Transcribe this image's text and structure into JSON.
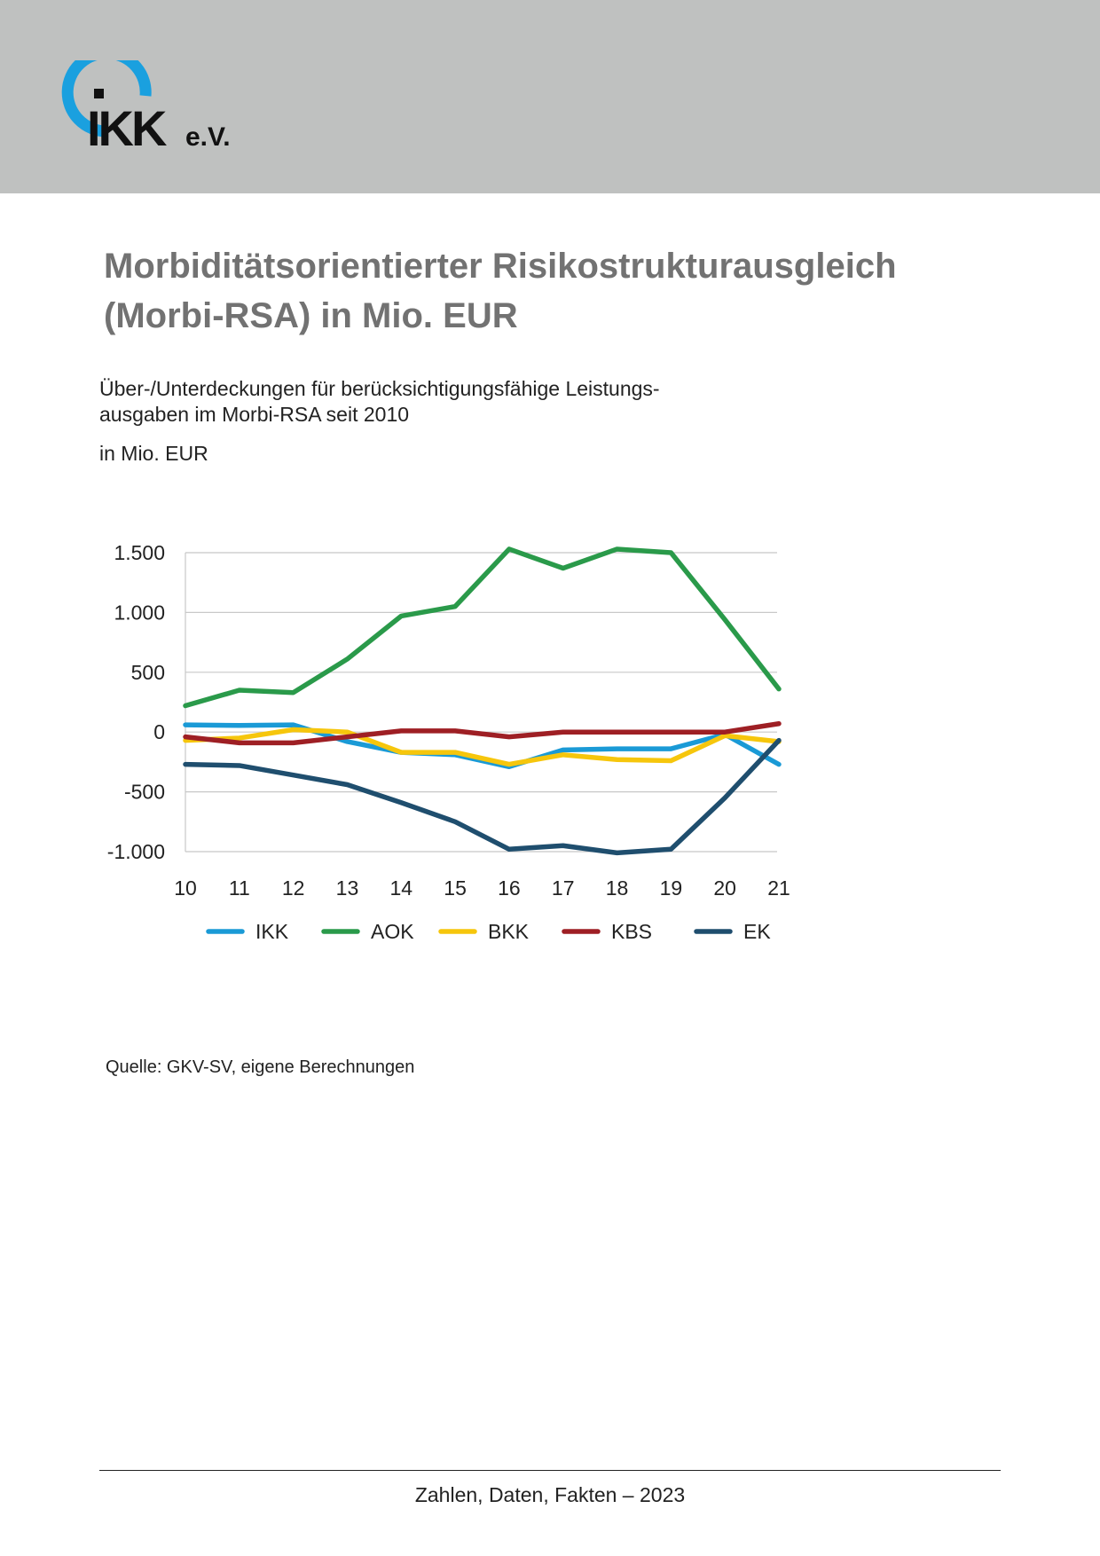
{
  "header": {
    "logo_text": "IKK",
    "logo_suffix": "e.V.",
    "band_color": "#bfc1c0",
    "logo_accent": "#1aa0df"
  },
  "page": {
    "title_line1": "Morbiditätsorientierter Risikostrukturausgleich",
    "title_line2": "(Morbi-RSA) in Mio. EUR",
    "subtitle_line1": "Über-/Unterdeckungen für berücksichtigungsfähige Leistungs-",
    "subtitle_line2": "ausgaben im Morbi-RSA seit 2010",
    "unit": "in Mio. EUR",
    "source": "Quelle: GKV-SV, eigene Berechnungen",
    "footer": "Zahlen, Daten, Fakten – 2023"
  },
  "chart_data": {
    "type": "line",
    "title": "",
    "xlabel": "",
    "ylabel": "",
    "x": [
      "10",
      "11",
      "12",
      "13",
      "14",
      "15",
      "16",
      "17",
      "18",
      "19",
      "20",
      "21"
    ],
    "ylim": [
      -1000,
      1500
    ],
    "yticks": [
      1500,
      1000,
      500,
      0,
      -500,
      -1000
    ],
    "ytick_labels": [
      "1.500",
      "1.000",
      "500",
      "0",
      "-500",
      "-1.000"
    ],
    "grid": true,
    "legend_position": "bottom",
    "series": [
      {
        "name": "IKK",
        "color": "#1a9ad6",
        "values": [
          60,
          55,
          60,
          -80,
          -170,
          -190,
          -290,
          -150,
          -140,
          -140,
          -20,
          -270
        ]
      },
      {
        "name": "AOK",
        "color": "#2a9a4a",
        "values": [
          220,
          350,
          330,
          610,
          970,
          1050,
          1530,
          1370,
          1530,
          1500,
          940,
          360
        ]
      },
      {
        "name": "BKK",
        "color": "#f6c60c",
        "values": [
          -70,
          -50,
          20,
          0,
          -170,
          -170,
          -270,
          -190,
          -230,
          -240,
          -30,
          -80
        ]
      },
      {
        "name": "KBS",
        "color": "#9e1f24",
        "values": [
          -40,
          -90,
          -90,
          -40,
          10,
          10,
          -40,
          0,
          0,
          0,
          0,
          70
        ]
      },
      {
        "name": "EK",
        "color": "#1f4e6e",
        "values": [
          -270,
          -280,
          -360,
          -440,
          -590,
          -750,
          -980,
          -950,
          -1010,
          -980,
          -550,
          -70
        ]
      }
    ]
  }
}
